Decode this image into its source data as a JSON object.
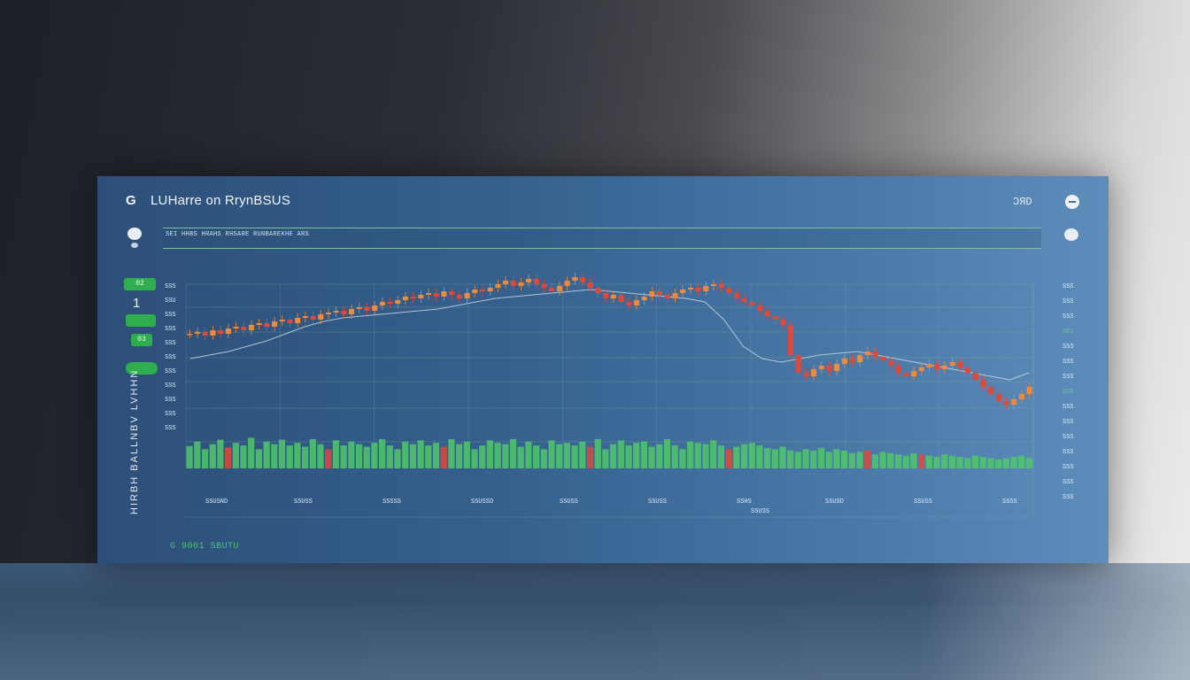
{
  "panel": {
    "title": "LUHarre on RrynBSUS",
    "logo": "G",
    "top_right_label": "ϽЯD",
    "search_text": "SEI HHBS HRAHS RHSARE RUNBAREKHE ARS",
    "badges": [
      "02",
      "",
      "03",
      ""
    ],
    "side_number": "1",
    "vertical_label": "HIRBH BALLNBV LVHHN",
    "footer_label": "G 9001 SBUTU",
    "colors": {
      "up": "#f0893a",
      "down": "#e0483a",
      "volume": "#4fc86a",
      "grid": "#79b58f",
      "line": "#c9d6e3"
    }
  },
  "chart_data": {
    "type": "line",
    "title": "",
    "xlabel": "",
    "ylabel": "",
    "x_tick_labels": [
      "SSUSND",
      "SSUSS",
      "SSSSS",
      "SSUSSD",
      "SSUSS",
      "SSUSS",
      "SSHS",
      "SSUSD",
      "SSUSS",
      "SSSS"
    ],
    "x_sub_label": "SSUSS",
    "y_left_tick_labels": [
      "SSS",
      "SSU",
      "SSS",
      "SSS",
      "SSS",
      "SSS",
      "SSS",
      "SSS",
      "SSS",
      "SSS",
      "SSS"
    ],
    "y_right_tick_labels": [
      "SSS",
      "SSS",
      "SSS",
      "SSS",
      "SSS",
      "SSS",
      "SSS",
      "SSS",
      "SSS",
      "SSS",
      "SSS",
      "SSS",
      "SSS",
      "SSS",
      "SSS"
    ],
    "grid": true,
    "price": [
      42,
      43,
      41,
      44,
      42,
      45,
      46,
      44,
      47,
      48,
      46,
      49,
      50,
      48,
      51,
      52,
      50,
      53,
      54,
      55,
      53,
      56,
      57,
      55,
      58,
      60,
      59,
      61,
      63,
      62,
      64,
      65,
      63,
      66,
      64,
      62,
      65,
      67,
      66,
      68,
      70,
      72,
      69,
      71,
      73,
      70,
      68,
      66,
      69,
      72,
      74,
      71,
      68,
      65,
      62,
      64,
      60,
      58,
      61,
      63,
      66,
      64,
      62,
      65,
      67,
      68,
      66,
      69,
      70,
      68,
      65,
      62,
      60,
      58,
      55,
      52,
      50,
      47,
      30,
      20,
      18,
      22,
      24,
      21,
      25,
      28,
      26,
      30,
      32,
      29,
      27,
      24,
      20,
      18,
      21,
      23,
      25,
      22,
      24,
      26,
      23,
      20,
      16,
      12,
      8,
      4,
      2,
      5,
      8,
      12
    ],
    "moving_average": [
      28,
      30,
      32,
      35,
      38,
      42,
      46,
      49,
      51,
      52,
      53,
      54,
      55,
      56,
      58,
      60,
      62,
      63,
      64,
      65,
      66,
      67,
      66,
      65,
      64,
      63,
      62,
      60,
      50,
      35,
      28,
      26,
      28,
      30,
      31,
      32,
      30,
      28,
      26,
      24,
      22,
      20,
      18,
      16,
      20
    ],
    "volume": [
      35,
      42,
      30,
      38,
      45,
      33,
      40,
      36,
      48,
      30,
      42,
      38,
      45,
      36,
      40,
      34,
      46,
      38,
      30,
      44,
      36,
      42,
      38,
      34,
      40,
      46,
      36,
      30,
      42,
      38,
      44,
      36,
      40,
      34,
      46,
      38,
      42,
      30,
      36,
      44,
      40,
      38,
      46,
      34,
      42,
      36,
      30,
      44,
      38,
      40,
      36,
      42,
      34,
      46,
      30,
      38,
      44,
      36,
      40,
      42,
      34,
      38,
      46,
      36,
      30,
      42,
      40,
      38,
      44,
      36,
      30,
      34,
      38,
      40,
      36,
      32,
      30,
      34,
      28,
      26,
      30,
      28,
      32,
      26,
      30,
      28,
      24,
      26,
      28,
      22,
      26,
      24,
      22,
      20,
      24,
      22,
      20,
      18,
      22,
      20,
      18,
      16,
      20,
      18,
      16,
      14,
      16,
      18,
      20,
      16
    ],
    "volume_down_indices": [
      5,
      18,
      33,
      52,
      70,
      88,
      95
    ]
  }
}
